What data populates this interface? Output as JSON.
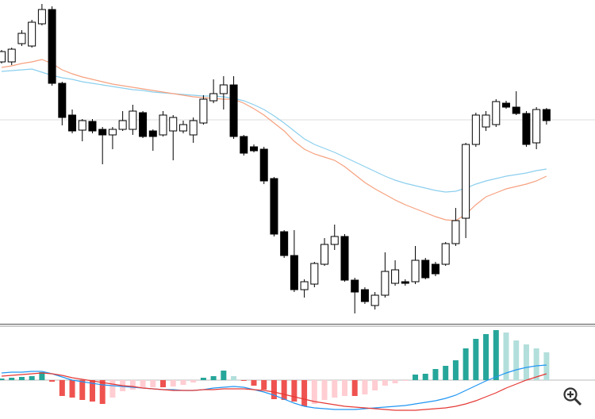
{
  "chart_data": [
    {
      "type": "candlestick",
      "ylim": [
        0,
        410
      ],
      "up_color": "#ffffff",
      "down_color": "#000000",
      "edge_color": "#000000",
      "open": [
        332,
        332,
        355,
        352,
        380,
        398,
        305,
        265,
        246,
        257,
        247,
        240,
        247,
        247,
        268,
        245,
        240,
        245,
        245,
        240,
        255,
        283,
        292,
        303,
        238,
        225,
        222,
        185,
        118,
        88,
        45,
        52,
        77,
        102,
        112,
        57,
        45,
        25,
        38,
        53,
        55,
        55,
        82,
        77,
        77,
        103,
        135,
        228,
        250,
        253,
        280,
        275,
        267,
        230,
        272
      ],
      "high": [
        347,
        350,
        372,
        385,
        405,
        402,
        307,
        272,
        260,
        260,
        250,
        250,
        270,
        278,
        270,
        247,
        270,
        265,
        258,
        262,
        290,
        310,
        314,
        314,
        240,
        228,
        225,
        187,
        120,
        120,
        58,
        80,
        110,
        127,
        115,
        60,
        48,
        42,
        92,
        82,
        58,
        100,
        85,
        80,
        105,
        148,
        230,
        268,
        270,
        285,
        283,
        295,
        270,
        275,
        274
      ],
      "low": [
        330,
        328,
        352,
        350,
        378,
        302,
        252,
        242,
        232,
        242,
        203,
        222,
        245,
        240,
        236,
        220,
        238,
        208,
        242,
        230,
        253,
        280,
        272,
        235,
        214,
        218,
        178,
        112,
        85,
        42,
        35,
        48,
        75,
        95,
        55,
        15,
        27,
        20,
        35,
        50,
        50,
        52,
        58,
        62,
        75,
        100,
        110,
        225,
        245,
        250,
        273,
        265,
        225,
        222,
        253
      ],
      "close": [
        345,
        348,
        368,
        382,
        398,
        305,
        262,
        245,
        258,
        245,
        240,
        247,
        258,
        270,
        238,
        238,
        265,
        262,
        253,
        258,
        285,
        292,
        303,
        238,
        217,
        220,
        182,
        115,
        88,
        45,
        55,
        78,
        102,
        112,
        57,
        42,
        30,
        38,
        68,
        70,
        53,
        82,
        60,
        65,
        103,
        132,
        228,
        265,
        265,
        282,
        275,
        267,
        228,
        272,
        258
      ],
      "series": [
        {
          "color": "#8ccfee",
          "values": [
            320,
            321,
            322,
            323,
            319,
            315,
            312,
            310,
            307,
            305,
            303,
            301,
            299,
            297,
            296,
            294,
            293,
            292,
            291,
            290,
            289,
            289,
            288,
            286,
            283,
            278,
            272,
            264,
            255,
            245,
            235,
            228,
            223,
            218,
            212,
            206,
            200,
            194,
            188,
            183,
            179,
            176,
            173,
            170,
            168,
            169,
            173,
            178,
            182,
            185,
            188,
            190,
            192,
            195,
            197
          ]
        },
        {
          "color": "#f6a17f",
          "values": [
            325,
            327,
            330,
            332,
            335,
            330,
            322,
            317,
            313,
            310,
            307,
            304,
            302,
            300,
            298,
            296,
            294,
            292,
            290,
            288,
            287,
            286,
            285,
            285,
            280,
            273,
            265,
            255,
            245,
            232,
            222,
            216,
            212,
            208,
            200,
            190,
            180,
            172,
            165,
            158,
            152,
            147,
            142,
            137,
            133,
            132,
            140,
            152,
            162,
            167,
            172,
            175,
            178,
            182,
            188
          ]
        }
      ]
    },
    {
      "type": "bar",
      "ylim": [
        -49,
        67
      ],
      "colors": {
        "up_rising": "#26a69a",
        "up_falling": "#b2dfdb",
        "down_falling": "#ef5350",
        "down_rising": "#ffcdd2"
      },
      "values": [
        2,
        3,
        4,
        5,
        10,
        -2,
        -20,
        -22,
        -25,
        -27,
        -30,
        -22,
        -14,
        -12,
        -10,
        -9,
        -9,
        -8,
        -6,
        -3,
        3,
        5,
        12,
        5,
        -1,
        -7,
        -12,
        -24,
        -25,
        -27,
        -33,
        -30,
        -25,
        -22,
        -20,
        -20,
        -18,
        -13,
        -7,
        -4,
        -1,
        7,
        8,
        14,
        18,
        25,
        40,
        52,
        58,
        63,
        60,
        50,
        45,
        40,
        35
      ],
      "series": [
        {
          "color": "#2196f3",
          "values": [
            9,
            10,
            10,
            11,
            11,
            8,
            4,
            0,
            -2,
            -4,
            -6,
            -7,
            -8,
            -9,
            -10,
            -11,
            -12,
            -12,
            -13,
            -13,
            -12,
            -10,
            -9,
            -8,
            -9,
            -12,
            -15,
            -19,
            -24,
            -29,
            -33,
            -35,
            -36,
            -37,
            -37,
            -37,
            -36,
            -35,
            -34,
            -33,
            -32,
            -30,
            -28,
            -26,
            -23,
            -19,
            -13,
            -7,
            -1,
            4,
            9,
            13,
            16,
            18,
            19
          ]
        },
        {
          "color": "#e53935",
          "values": [
            5,
            6,
            7,
            8,
            9,
            8,
            6,
            3,
            1,
            -1,
            -3,
            -5,
            -7,
            -8,
            -10,
            -11,
            -12,
            -13,
            -13,
            -13,
            -12,
            -12,
            -11,
            -11,
            -11,
            -12,
            -13,
            -15,
            -18,
            -21,
            -24,
            -27,
            -29,
            -31,
            -33,
            -34,
            -35,
            -36,
            -37,
            -38,
            -38,
            -38,
            -37,
            -36,
            -35,
            -33,
            -30,
            -26,
            -21,
            -16,
            -10,
            -5,
            0,
            4,
            8
          ]
        }
      ]
    }
  ]
}
